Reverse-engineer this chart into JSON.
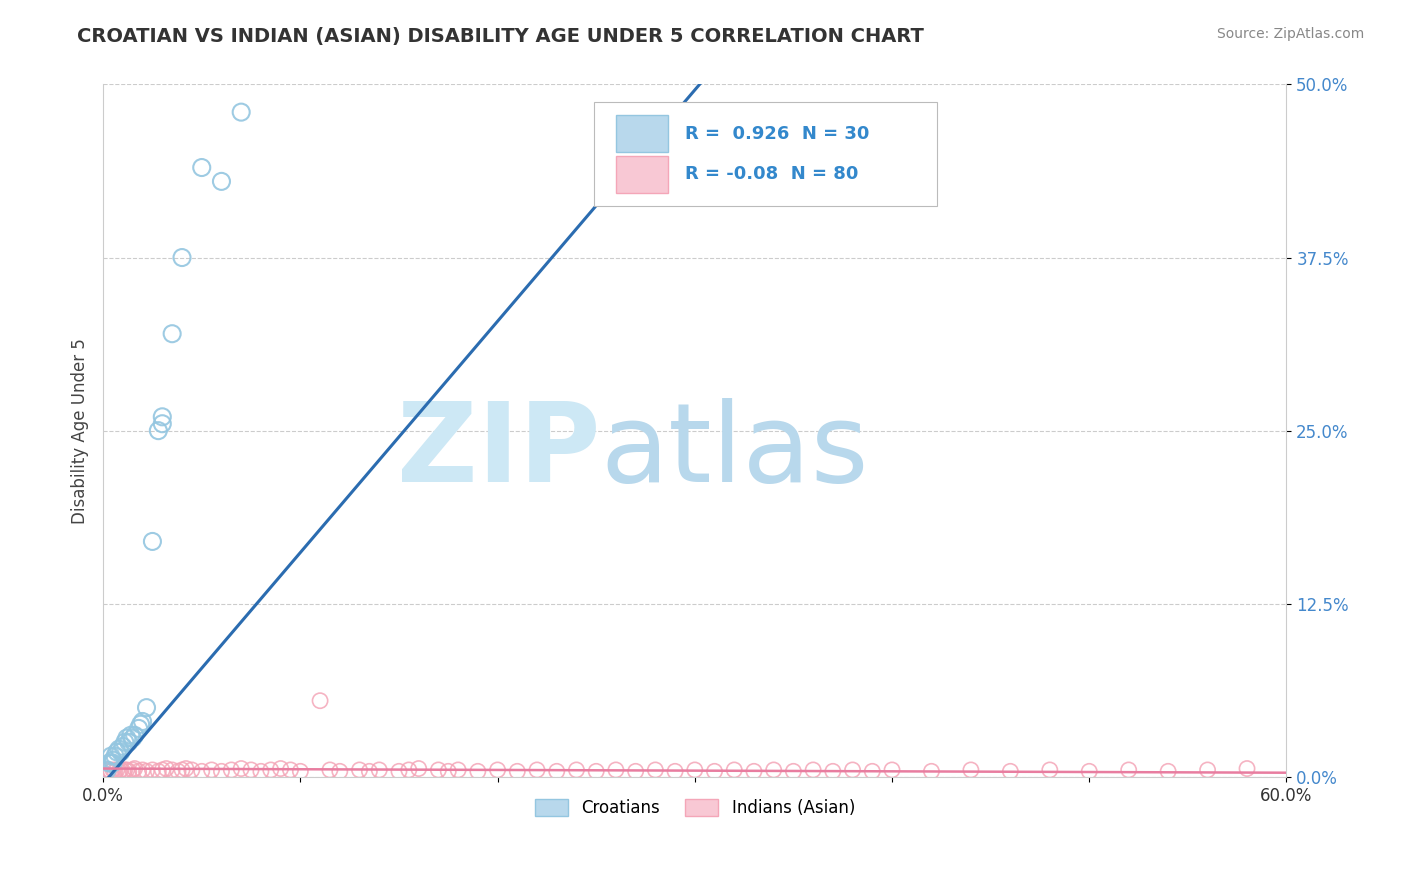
{
  "title": "CROATIAN VS INDIAN (ASIAN) DISABILITY AGE UNDER 5 CORRELATION CHART",
  "source": "Source: ZipAtlas.com",
  "ylabel": "Disability Age Under 5",
  "xlim": [
    0.0,
    0.6
  ],
  "ylim": [
    0.0,
    0.5
  ],
  "yticks": [
    0.0,
    0.125,
    0.25,
    0.375,
    0.5
  ],
  "ytick_labels": [
    "0.0%",
    "12.5%",
    "25.0%",
    "37.5%",
    "50.0%"
  ],
  "R_croatian": 0.926,
  "N_croatian": 30,
  "R_indian": -0.08,
  "N_indian": 80,
  "color_croatian": "#94c6e0",
  "color_indian": "#f4a6b8",
  "color_line_croatian": "#2b6cb0",
  "color_line_indian": "#e87da0",
  "watermark_zip_color": "#cde8f5",
  "watermark_atlas_color": "#b8d8ec",
  "legend_box_color_croatian": "#b8d8ec",
  "legend_box_color_indian": "#f8c8d4",
  "croatian_x": [
    0.002,
    0.003,
    0.004,
    0.004,
    0.005,
    0.005,
    0.006,
    0.007,
    0.008,
    0.009,
    0.01,
    0.011,
    0.012,
    0.013,
    0.014,
    0.015,
    0.016,
    0.018,
    0.019,
    0.02,
    0.022,
    0.025,
    0.028,
    0.03,
    0.03,
    0.035,
    0.04,
    0.05,
    0.06,
    0.07
  ],
  "croatian_y": [
    0.005,
    0.01,
    0.01,
    0.015,
    0.01,
    0.012,
    0.015,
    0.018,
    0.02,
    0.018,
    0.022,
    0.025,
    0.028,
    0.025,
    0.03,
    0.028,
    0.03,
    0.035,
    0.038,
    0.04,
    0.05,
    0.17,
    0.25,
    0.255,
    0.26,
    0.32,
    0.375,
    0.44,
    0.43,
    0.48
  ],
  "indian_x": [
    0.002,
    0.003,
    0.004,
    0.005,
    0.006,
    0.007,
    0.008,
    0.009,
    0.01,
    0.011,
    0.012,
    0.013,
    0.015,
    0.016,
    0.018,
    0.02,
    0.022,
    0.025,
    0.028,
    0.03,
    0.032,
    0.035,
    0.038,
    0.04,
    0.042,
    0.045,
    0.05,
    0.055,
    0.06,
    0.065,
    0.07,
    0.075,
    0.08,
    0.085,
    0.09,
    0.095,
    0.1,
    0.11,
    0.115,
    0.12,
    0.13,
    0.135,
    0.14,
    0.15,
    0.155,
    0.16,
    0.17,
    0.175,
    0.18,
    0.19,
    0.2,
    0.21,
    0.22,
    0.23,
    0.24,
    0.25,
    0.26,
    0.27,
    0.28,
    0.29,
    0.3,
    0.31,
    0.32,
    0.33,
    0.34,
    0.35,
    0.36,
    0.37,
    0.38,
    0.39,
    0.4,
    0.42,
    0.44,
    0.46,
    0.48,
    0.5,
    0.52,
    0.54,
    0.56,
    0.58
  ],
  "indian_y": [
    0.005,
    0.005,
    0.004,
    0.005,
    0.004,
    0.005,
    0.004,
    0.005,
    0.004,
    0.005,
    0.005,
    0.004,
    0.005,
    0.006,
    0.004,
    0.005,
    0.004,
    0.005,
    0.004,
    0.005,
    0.006,
    0.005,
    0.004,
    0.005,
    0.006,
    0.005,
    0.004,
    0.005,
    0.004,
    0.005,
    0.006,
    0.005,
    0.004,
    0.005,
    0.006,
    0.005,
    0.004,
    0.055,
    0.005,
    0.004,
    0.005,
    0.004,
    0.005,
    0.004,
    0.005,
    0.006,
    0.005,
    0.004,
    0.005,
    0.004,
    0.005,
    0.004,
    0.005,
    0.004,
    0.005,
    0.004,
    0.005,
    0.004,
    0.005,
    0.004,
    0.005,
    0.004,
    0.005,
    0.004,
    0.005,
    0.004,
    0.005,
    0.004,
    0.005,
    0.004,
    0.005,
    0.004,
    0.005,
    0.004,
    0.005,
    0.004,
    0.005,
    0.004,
    0.005,
    0.006
  ]
}
